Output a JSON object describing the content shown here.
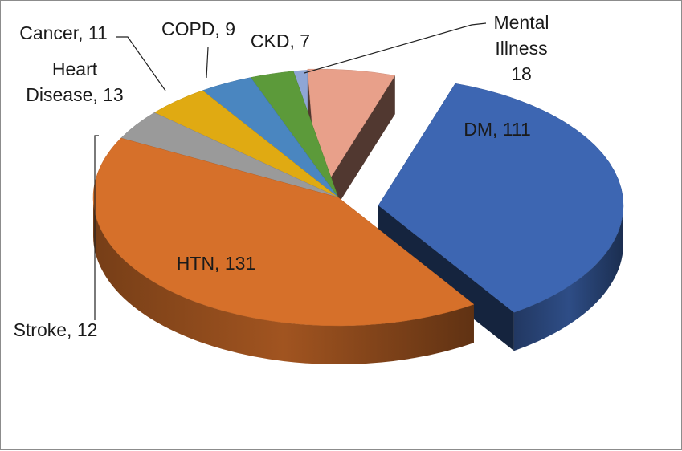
{
  "chart_data": {
    "type": "pie",
    "style": "3d-exploded",
    "title": "",
    "categories": [
      "DM",
      "HTN",
      "Stroke",
      "Heart Disease",
      "Cancer",
      "COPD",
      "CKD",
      "Mental Illness"
    ],
    "values": [
      111,
      131,
      12,
      13,
      11,
      9,
      7,
      18
    ],
    "legend": "none",
    "labels": {
      "DM": [
        "DM, 111"
      ],
      "HTN": [
        "HTN, 131"
      ],
      "Stroke": [
        "Stroke, 12"
      ],
      "Heart Disease": [
        "Heart",
        "Disease, 13"
      ],
      "Cancer": [
        "Cancer, 11"
      ],
      "COPD": [
        "COPD, 9"
      ],
      "CKD": [
        "CKD, 7"
      ],
      "Mental Illness": [
        "Mental",
        "Illness",
        "18"
      ]
    },
    "colors": {
      "DM": "#3d66b2",
      "HTN": "#d6702a",
      "Stroke": "#9a9a9a",
      "Heart Disease": "#e0aa12",
      "Cancer": "#4a86c0",
      "COPD": "#5c9a3a",
      "CKD": "#8fa6d6",
      "Mental Illness": "#e8a08a"
    }
  }
}
